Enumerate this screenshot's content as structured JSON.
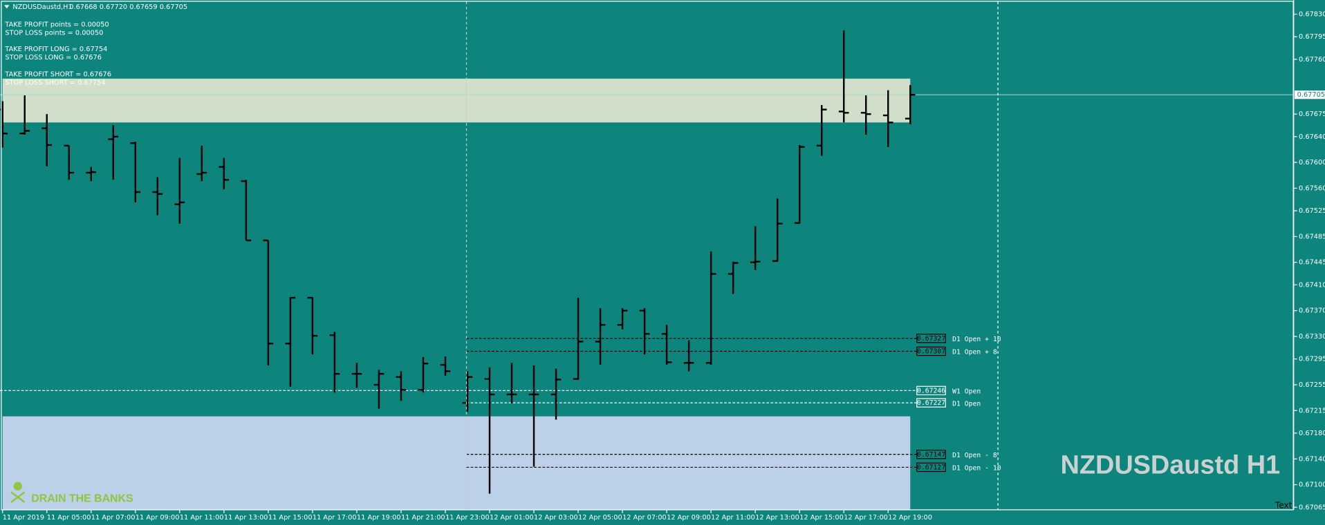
{
  "window": {
    "symbol": "NZDUSDaustd,H1",
    "quote": "0.67668 0.67720 0.67659 0.67705"
  },
  "info": [
    "TAKE PROFIT points = 0.00050",
    "STOP LOSS points =   0.00050",
    "TAKE PROFIT LONG = 0.67754",
    "STOP LOSS LONG =   0.67676",
    "TAKE PROFIT SHORT = 0.67676",
    "STOP LOSS SHORT =  0.67754"
  ],
  "watermark": "NZDUSDaustd H1",
  "logo": "DRAIN THE BANKS",
  "corner_text": "Text",
  "chart_data": {
    "type": "ohlc",
    "color": "#000000",
    "categories": [
      "11 Apr 2019",
      null,
      "11 Apr 05:00",
      null,
      "11 Apr 07:00",
      null,
      "11 Apr 09:00",
      null,
      "11 Apr 11:00",
      null,
      "11 Apr 13:00",
      null,
      "11 Apr 15:00",
      null,
      "11 Apr 17:00",
      null,
      "11 Apr 19:00",
      null,
      "11 Apr 21:00",
      null,
      "11 Apr 23:00",
      null,
      "12 Apr 01:00",
      null,
      "12 Apr 03:00",
      null,
      "12 Apr 05:00",
      null,
      "12 Apr 07:00",
      null,
      "12 Apr 09:00",
      null,
      "12 Apr 11:00",
      null,
      "12 Apr 13:00",
      null,
      "12 Apr 15:00",
      null,
      "12 Apr 17:00",
      null,
      "12 Apr 19:00",
      null
    ],
    "open": [
      0.67682,
      0.67645,
      0.67653,
      0.67626,
      0.67584,
      0.67636,
      0.6763,
      0.67554,
      0.67535,
      0.67582,
      0.67593,
      0.67571,
      0.67479,
      0.67319,
      0.6739,
      0.67332,
      0.67272,
      0.67255,
      0.67267,
      0.67247,
      0.67286,
      0.67227,
      0.67264,
      0.6724,
      0.6724,
      0.6724,
      0.67264,
      0.67322,
      0.67348,
      0.6737,
      0.67334,
      0.67289,
      0.67289,
      0.67427,
      0.67445,
      0.67447,
      0.67506,
      0.67626,
      0.67679,
      0.67677,
      0.67673,
      0.67668
    ],
    "high": [
      0.67695,
      0.67704,
      0.67675,
      0.67626,
      0.67593,
      0.67658,
      0.67632,
      0.67577,
      0.67607,
      0.67626,
      0.67607,
      0.67573,
      0.67479,
      0.67391,
      0.67391,
      0.67337,
      0.67289,
      0.67278,
      0.67276,
      0.67298,
      0.67299,
      0.67276,
      0.67282,
      0.67289,
      0.67285,
      0.6728,
      0.6739,
      0.67374,
      0.67374,
      0.67374,
      0.67348,
      0.67324,
      0.67462,
      0.67446,
      0.67501,
      0.67544,
      0.67627,
      0.67689,
      0.67805,
      0.67704,
      0.67712,
      0.6772
    ],
    "low": [
      0.67623,
      0.67643,
      0.67594,
      0.67573,
      0.67571,
      0.67573,
      0.67538,
      0.67518,
      0.67505,
      0.67571,
      0.67558,
      0.67479,
      0.67285,
      0.67252,
      0.67302,
      0.67243,
      0.6725,
      0.67218,
      0.6723,
      0.67243,
      0.67269,
      0.67213,
      0.67086,
      0.67226,
      0.67128,
      0.67201,
      0.67263,
      0.67286,
      0.67341,
      0.67302,
      0.67286,
      0.67276,
      0.67286,
      0.67396,
      0.67433,
      0.67446,
      0.67505,
      0.6761,
      0.67662,
      0.67643,
      0.67624,
      0.67659
    ],
    "close": [
      0.67645,
      0.67649,
      0.67627,
      0.67584,
      0.67585,
      0.6764,
      0.67554,
      0.67551,
      0.67538,
      0.67584,
      0.67573,
      0.67479,
      0.67319,
      0.6739,
      0.67331,
      0.67272,
      0.67272,
      0.67272,
      0.67247,
      0.67288,
      0.67276,
      0.67267,
      0.6724,
      0.6724,
      0.6724,
      0.67263,
      0.67322,
      0.67348,
      0.6737,
      0.67334,
      0.6729,
      0.67289,
      0.67427,
      0.67444,
      0.67446,
      0.67505,
      0.67624,
      0.67682,
      0.67677,
      0.67675,
      0.67662,
      0.67705
    ],
    "ylim": [
      0.67061,
      0.67852
    ],
    "yticks": [
      {
        "value": 0.6783,
        "label": "0.67830"
      },
      0.67795,
      {
        "value": 0.6776,
        "label": "0.67760"
      },
      0.67675,
      {
        "value": 0.6764,
        "label": "0.67640"
      },
      {
        "value": 0.676,
        "label": "0.67600"
      },
      {
        "value": 0.6756,
        "label": "0.67560"
      },
      0.67525,
      0.67485,
      0.67445,
      {
        "value": 0.6741,
        "label": "0.67410"
      },
      {
        "value": 0.6737,
        "label": "0.67370"
      },
      {
        "value": 0.6733,
        "label": "0.67330"
      },
      0.67295,
      0.67255,
      0.67215,
      {
        "value": 0.6718,
        "label": "0.67180"
      },
      {
        "value": 0.6714,
        "label": "0.67140"
      },
      {
        "value": 0.671,
        "label": "0.67100"
      },
      0.67065
    ],
    "zones": [
      {
        "color": "#d1dec9",
        "range": [
          0.67662,
          0.6773
        ]
      },
      {
        "color": "#bcd0e8",
        "range": [
          0.67061,
          0.67206
        ]
      }
    ],
    "levels": [
      {
        "name": "D1 Open + 10",
        "value": 0.67327,
        "color": "#000000"
      },
      {
        "name": "D1 Open + 8",
        "value": 0.67307,
        "color": "#000000"
      },
      {
        "name": "W1 Open",
        "value": 0.67246,
        "color": "#ffffff"
      },
      {
        "name": "D1 Open",
        "value": 0.67227,
        "color": "#ffffff"
      },
      {
        "name": "D1 Open - 8",
        "value": 0.67147,
        "color": "#000000"
      },
      {
        "name": "D1 Open - 10",
        "value": 0.67127,
        "color": "#000000"
      }
    ]
  }
}
